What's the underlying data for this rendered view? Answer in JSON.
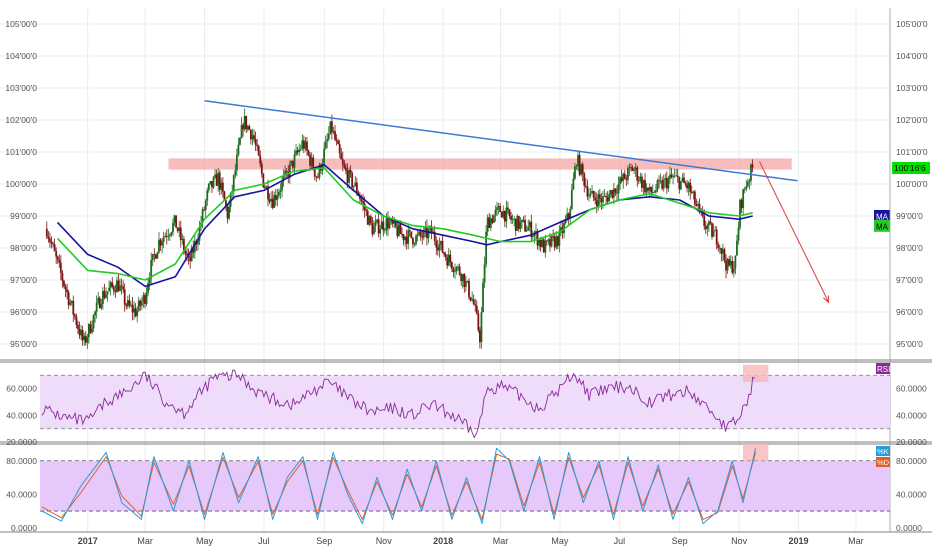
{
  "colors": {
    "background": "#ffffff",
    "grid": "#e9ecf0",
    "border": "#555555",
    "candle_up": "#1f6b1f",
    "candle_down": "#7a1414",
    "ma_fast": "#22cc22",
    "ma_slow": "#1414a0",
    "trendline": "#3d7ad6",
    "resistance_zone": "#f4a0a0",
    "projection_arrow": "#e03a3a",
    "price_badge": "#00e000",
    "rsi_line": "#8a2a9a",
    "rsi_band": "#eedcfa",
    "stoch_k": "#2a9ad8",
    "stoch_d": "#e0602a",
    "stoch_band": "#e6c8fa",
    "highlight": "#f6b8b8"
  },
  "chart_data": [
    {
      "type": "line",
      "panel": "price",
      "subtype": "candlestick",
      "x_ticks": [
        "2017",
        "Mar",
        "May",
        "Jul",
        "Sep",
        "Nov",
        "2018",
        "Mar",
        "May",
        "Jul",
        "Sep",
        "Nov",
        "2019",
        "Mar"
      ],
      "y_ticks": [
        "95'00'0",
        "96'00'0",
        "97'00'0",
        "98'00'0",
        "99'00'0",
        "100'00'0",
        "101'00'0",
        "102'00'0",
        "103'00'0",
        "104'00'0",
        "105'00'0"
      ],
      "ylim": [
        94.5,
        105.5
      ],
      "grid": true,
      "last_price_label": "100'16'6",
      "close_series": {
        "x": [
          "2016-11-20",
          "2016-12-01",
          "2016-12-15",
          "2016-12-28",
          "2017-01-15",
          "2017-02-01",
          "2017-02-10",
          "2017-02-20",
          "2017-03-01",
          "2017-03-05",
          "2017-03-15",
          "2017-04-01",
          "2017-04-15",
          "2017-04-25",
          "2017-05-05",
          "2017-05-15",
          "2017-05-25",
          "2017-06-10",
          "2017-06-20",
          "2017-07-01",
          "2017-07-10",
          "2017-07-25",
          "2017-08-10",
          "2017-08-25",
          "2017-09-08",
          "2017-09-20",
          "2017-10-05",
          "2017-10-20",
          "2017-11-05",
          "2017-11-20",
          "2017-12-05",
          "2017-12-20",
          "2018-01-05",
          "2018-01-20",
          "2018-02-01",
          "2018-02-08",
          "2018-02-15",
          "2018-03-01",
          "2018-03-15",
          "2018-04-01",
          "2018-04-15",
          "2018-04-30",
          "2018-05-10",
          "2018-05-18",
          "2018-06-01",
          "2018-06-15",
          "2018-07-01",
          "2018-07-15",
          "2018-08-01",
          "2018-08-15",
          "2018-08-25",
          "2018-09-10",
          "2018-09-25",
          "2018-10-10",
          "2018-10-20",
          "2018-10-28",
          "2018-11-02",
          "2018-11-08",
          "2018-11-15"
        ],
        "values": [
          98.6,
          97.5,
          96.2,
          95.0,
          96.5,
          96.9,
          96.2,
          96.0,
          96.5,
          97.2,
          98.2,
          98.8,
          97.5,
          98.5,
          99.8,
          100.2,
          99.0,
          102.0,
          101.5,
          100.0,
          99.5,
          100.3,
          101.3,
          100.2,
          101.8,
          100.5,
          99.8,
          98.6,
          98.8,
          98.4,
          98.3,
          98.5,
          97.7,
          97.2,
          96.3,
          95.2,
          98.8,
          99.2,
          98.8,
          98.6,
          98.0,
          98.3,
          99.0,
          100.8,
          99.6,
          99.5,
          100.0,
          100.5,
          99.7,
          100.0,
          100.2,
          99.9,
          98.8,
          98.3,
          97.4,
          97.5,
          99.3,
          100.0,
          100.5
        ]
      },
      "series": [
        {
          "name": "MA",
          "x": [
            "2016-12-01",
            "2017-01-01",
            "2017-02-01",
            "2017-03-01",
            "2017-04-01",
            "2017-05-01",
            "2017-06-01",
            "2017-07-01",
            "2017-08-01",
            "2017-09-01",
            "2017-10-01",
            "2017-11-01",
            "2017-12-01",
            "2018-01-01",
            "2018-02-01",
            "2018-02-15",
            "2018-03-01",
            "2018-04-01",
            "2018-05-01",
            "2018-06-01",
            "2018-07-01",
            "2018-08-01",
            "2018-09-01",
            "2018-10-01",
            "2018-11-01",
            "2018-11-15"
          ],
          "values": [
            98.8,
            97.8,
            97.4,
            96.8,
            97.1,
            98.6,
            99.6,
            99.8,
            100.3,
            100.6,
            99.8,
            99.0,
            98.6,
            98.4,
            98.2,
            98.1,
            98.2,
            98.4,
            98.8,
            99.2,
            99.5,
            99.6,
            99.5,
            99.0,
            98.9,
            99.0
          ]
        },
        {
          "name": "MA",
          "x": [
            "2016-12-01",
            "2017-01-01",
            "2017-02-01",
            "2017-03-01",
            "2017-04-01",
            "2017-05-01",
            "2017-06-01",
            "2017-07-01",
            "2017-08-01",
            "2017-09-01",
            "2017-10-01",
            "2017-11-01",
            "2017-12-01",
            "2018-01-01",
            "2018-02-01",
            "2018-02-15",
            "2018-03-01",
            "2018-04-01",
            "2018-05-01",
            "2018-06-01",
            "2018-07-01",
            "2018-08-01",
            "2018-09-01",
            "2018-10-01",
            "2018-11-01",
            "2018-11-15"
          ],
          "values": [
            98.3,
            97.3,
            97.2,
            97.0,
            97.5,
            98.9,
            99.8,
            100.0,
            100.4,
            100.5,
            99.5,
            99.0,
            98.7,
            98.6,
            98.4,
            98.3,
            98.2,
            98.2,
            98.5,
            99.2,
            99.5,
            99.7,
            99.4,
            99.1,
            99.0,
            99.1
          ]
        }
      ],
      "annotations": {
        "descending_trendline": {
          "x": [
            "2017-05-01",
            "2018-12-31"
          ],
          "y": [
            102.6,
            100.1
          ]
        },
        "resistance_zone": {
          "x": [
            "2017-03-25",
            "2018-12-25"
          ],
          "y_low": 100.45,
          "y_high": 100.8
        },
        "projection_arrow": {
          "x": [
            "2018-11-22",
            "2019-02-01"
          ],
          "y": [
            100.7,
            96.3
          ]
        }
      }
    },
    {
      "type": "line",
      "panel": "indicator",
      "series": [
        {
          "name": "RSI",
          "x": [
            "2016-11-15",
            "2016-12-10",
            "2017-01-01",
            "2017-01-20",
            "2017-02-10",
            "2017-03-01",
            "2017-03-20",
            "2017-04-10",
            "2017-04-25",
            "2017-05-10",
            "2017-06-05",
            "2017-06-20",
            "2017-07-10",
            "2017-08-01",
            "2017-08-20",
            "2017-09-05",
            "2017-10-01",
            "2017-10-20",
            "2017-11-10",
            "2017-12-01",
            "2017-12-20",
            "2018-01-10",
            "2018-02-05",
            "2018-02-15",
            "2018-03-01",
            "2018-03-20",
            "2018-04-10",
            "2018-05-01",
            "2018-05-15",
            "2018-06-01",
            "2018-06-20",
            "2018-07-10",
            "2018-08-01",
            "2018-08-20",
            "2018-09-10",
            "2018-10-01",
            "2018-10-20",
            "2018-11-01",
            "2018-11-10",
            "2018-11-18"
          ],
          "values": [
            45,
            38,
            35,
            50,
            58,
            70,
            52,
            42,
            55,
            68,
            70,
            60,
            52,
            48,
            58,
            65,
            50,
            42,
            45,
            40,
            48,
            40,
            25,
            60,
            62,
            55,
            45,
            60,
            72,
            55,
            60,
            62,
            50,
            55,
            58,
            45,
            30,
            38,
            52,
            72
          ]
        }
      ],
      "y_ticks": [
        "20.0000",
        "40.0000",
        "60.0000"
      ],
      "ylim": [
        20,
        80
      ],
      "bands": [
        30,
        70
      ],
      "highlight": {
        "x": [
          "2018-11-05",
          "2018-12-01"
        ],
        "y": [
          65,
          78
        ]
      }
    },
    {
      "type": "line",
      "panel": "indicator",
      "series": [
        {
          "name": "%K",
          "x": [
            "2016-11-15",
            "2016-12-05",
            "2016-12-25",
            "2017-01-20",
            "2017-02-05",
            "2017-02-25",
            "2017-03-10",
            "2017-03-30",
            "2017-04-15",
            "2017-05-01",
            "2017-05-20",
            "2017-06-05",
            "2017-06-25",
            "2017-07-10",
            "2017-07-25",
            "2017-08-10",
            "2017-08-25",
            "2017-09-10",
            "2017-09-25",
            "2017-10-10",
            "2017-10-25",
            "2017-11-10",
            "2017-11-25",
            "2017-12-10",
            "2017-12-25",
            "2018-01-10",
            "2018-01-25",
            "2018-02-10",
            "2018-02-25",
            "2018-03-10",
            "2018-03-25",
            "2018-04-10",
            "2018-04-25",
            "2018-05-10",
            "2018-05-25",
            "2018-06-10",
            "2018-06-25",
            "2018-07-10",
            "2018-07-25",
            "2018-08-10",
            "2018-08-25",
            "2018-09-10",
            "2018-09-25",
            "2018-10-10",
            "2018-10-25",
            "2018-11-05",
            "2018-11-18"
          ],
          "values": [
            20,
            8,
            50,
            90,
            30,
            10,
            85,
            20,
            80,
            10,
            90,
            30,
            85,
            10,
            60,
            85,
            10,
            90,
            40,
            5,
            60,
            10,
            70,
            20,
            80,
            10,
            60,
            5,
            95,
            80,
            20,
            85,
            10,
            90,
            30,
            80,
            10,
            85,
            20,
            75,
            10,
            60,
            5,
            20,
            80,
            30,
            95
          ]
        },
        {
          "name": "%D",
          "x": [
            "2016-11-15",
            "2016-12-05",
            "2016-12-25",
            "2017-01-20",
            "2017-02-05",
            "2017-02-25",
            "2017-03-10",
            "2017-03-30",
            "2017-04-15",
            "2017-05-01",
            "2017-05-20",
            "2017-06-05",
            "2017-06-25",
            "2017-07-10",
            "2017-07-25",
            "2017-08-10",
            "2017-08-25",
            "2017-09-10",
            "2017-09-25",
            "2017-10-10",
            "2017-10-25",
            "2017-11-10",
            "2017-11-25",
            "2017-12-10",
            "2017-12-25",
            "2018-01-10",
            "2018-01-25",
            "2018-02-10",
            "2018-02-25",
            "2018-03-10",
            "2018-03-25",
            "2018-04-10",
            "2018-04-25",
            "2018-05-10",
            "2018-05-25",
            "2018-06-10",
            "2018-06-25",
            "2018-07-10",
            "2018-07-25",
            "2018-08-10",
            "2018-08-25",
            "2018-09-10",
            "2018-09-25",
            "2018-10-10",
            "2018-10-25",
            "2018-11-05",
            "2018-11-18"
          ],
          "values": [
            25,
            12,
            42,
            85,
            38,
            14,
            78,
            28,
            74,
            16,
            84,
            36,
            79,
            16,
            55,
            80,
            16,
            84,
            45,
            10,
            55,
            15,
            64,
            25,
            74,
            15,
            55,
            10,
            88,
            82,
            26,
            78,
            16,
            84,
            36,
            75,
            16,
            78,
            26,
            70,
            16,
            55,
            10,
            18,
            74,
            35,
            90
          ]
        }
      ],
      "y_ticks": [
        "0.0000",
        "40.0000",
        "80.0000"
      ],
      "ylim": [
        -5,
        100
      ],
      "bands": [
        20,
        80
      ],
      "highlight": {
        "x": [
          "2018-11-05",
          "2018-12-01"
        ],
        "y": [
          80,
          100
        ]
      }
    }
  ]
}
